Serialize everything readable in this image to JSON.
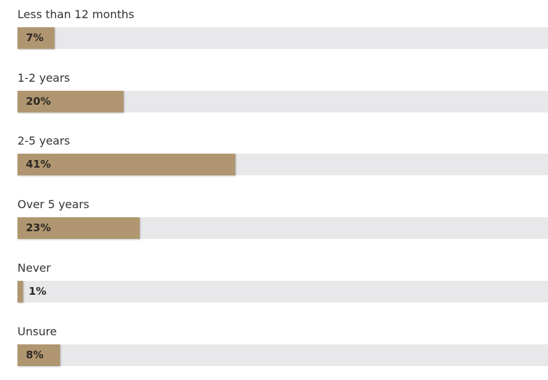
{
  "accent_color": "#b09670",
  "track_color": "#e8e8ea",
  "chart_data": {
    "type": "bar",
    "orientation": "horizontal",
    "categories": [
      "Less than 12 months",
      "1-2 years",
      "2-5 years",
      "Over 5 years",
      "Never",
      "Unsure"
    ],
    "values": [
      7,
      20,
      41,
      23,
      1,
      8
    ],
    "value_labels": [
      "7%",
      "20%",
      "41%",
      "23%",
      "1%",
      "8%"
    ],
    "xlim": [
      0,
      100
    ],
    "grid": false
  }
}
